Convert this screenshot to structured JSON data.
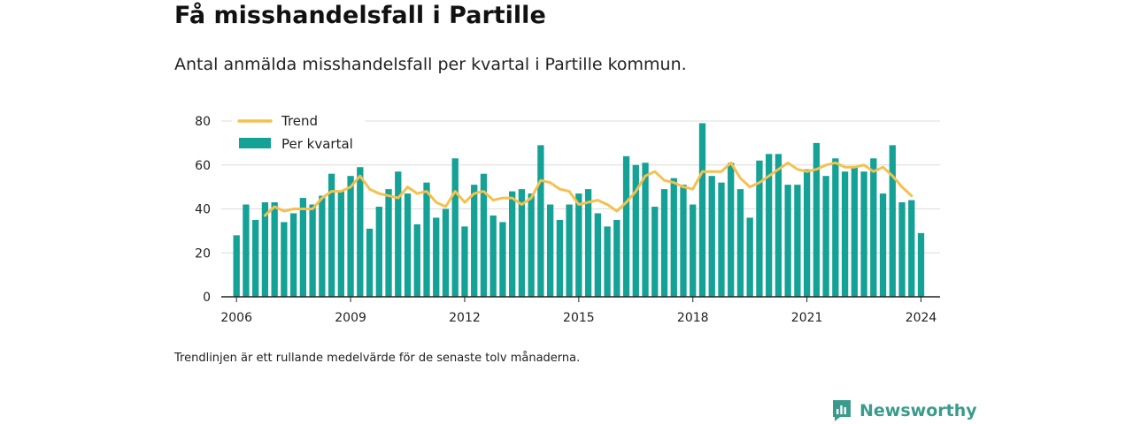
{
  "header": {
    "title": "Få misshandelsfall i Partille",
    "subtitle": "Antal anmälda misshandelsfall per kvartal i Partille kommun."
  },
  "footnote": "Trendlinjen är ett rullande medelvärde för de senaste tolv månaderna.",
  "brand": {
    "name": "Newsworthy",
    "icon": "newsworthy-logo-icon",
    "color": "#3a9b8d"
  },
  "chart_data": {
    "type": "bar",
    "bar_color": "#14a196",
    "trend_color": "#f5c04f",
    "x_start": 2006.0,
    "x_step": 0.25,
    "x_ticks": [
      2006,
      2009,
      2012,
      2015,
      2018,
      2021,
      2024
    ],
    "x_tick_labels": [
      "2006",
      "2009",
      "2012",
      "2015",
      "2018",
      "2021",
      "2024"
    ],
    "xlim": [
      2005.6,
      2024.5
    ],
    "ylim": [
      0,
      80
    ],
    "y_ticks": [
      0,
      20,
      40,
      60,
      80
    ],
    "y_tick_labels": [
      "0",
      "20",
      "40",
      "60",
      "80"
    ],
    "grid": true,
    "legend_position": "top-left",
    "series": [
      {
        "name": "Per kvartal",
        "kind": "bar",
        "values": [
          28,
          42,
          35,
          43,
          43,
          34,
          38,
          45,
          42,
          46,
          56,
          48,
          55,
          59,
          31,
          41,
          49,
          57,
          47,
          33,
          52,
          36,
          40,
          63,
          32,
          51,
          56,
          37,
          34,
          48,
          49,
          47,
          69,
          42,
          35,
          42,
          47,
          49,
          38,
          32,
          35,
          64,
          60,
          61,
          41,
          49,
          54,
          51,
          42,
          79,
          55,
          52,
          61,
          49,
          36,
          62,
          65,
          65,
          51,
          51,
          58,
          70,
          55,
          63,
          57,
          59,
          57,
          63,
          47,
          69,
          43,
          44,
          29
        ]
      },
      {
        "name": "Trend",
        "kind": "line",
        "start_index": 3,
        "values": [
          37,
          41,
          39,
          40,
          40,
          40,
          45,
          48,
          48,
          50,
          55,
          49,
          47,
          46,
          45,
          50,
          47,
          48,
          43,
          41,
          48,
          43,
          47,
          48,
          44,
          45,
          45,
          42,
          45,
          53,
          52,
          49,
          48,
          42,
          43,
          44,
          42,
          39,
          43,
          48,
          55,
          57,
          53,
          52,
          50,
          49,
          57,
          57,
          57,
          61,
          54,
          50,
          52,
          55,
          58,
          61,
          58,
          57,
          58,
          60,
          61,
          59,
          59,
          60,
          57,
          59,
          55,
          50,
          46
        ]
      }
    ]
  }
}
